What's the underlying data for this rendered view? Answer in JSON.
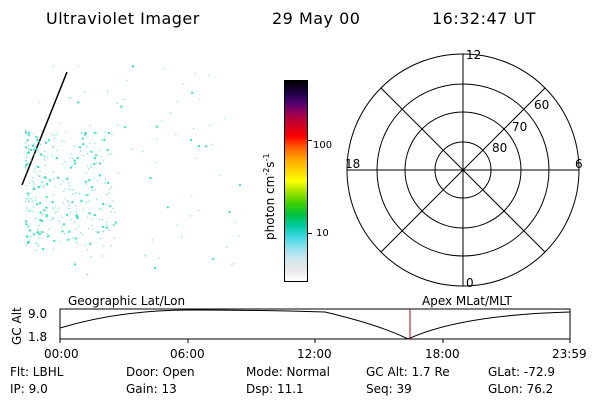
{
  "header": {
    "title": "Ultraviolet Imager",
    "date": "29 May 00",
    "time": "16:32:47 UT"
  },
  "colorbar": {
    "unit_label": "photon cm",
    "unit_exp1": "-2",
    "unit_s": "s",
    "unit_exp2": "-1",
    "ticks": [
      "100",
      "10"
    ],
    "colors": [
      "#ffffff",
      "#e8e8e8",
      "#cfe8f0",
      "#8fe0f0",
      "#3cd8e0",
      "#00c8a0",
      "#00c040",
      "#40d000",
      "#a0e000",
      "#ffff00",
      "#ffd000",
      "#ffa000",
      "#ff6000",
      "#ff0000",
      "#d00020",
      "#a00050",
      "#500070",
      "#1a0040",
      "#000000"
    ]
  },
  "polar_grid": {
    "mlt_labels": [
      "12",
      "18",
      "6",
      "0"
    ],
    "lat_labels": [
      "60",
      "70",
      "80"
    ]
  },
  "orbit": {
    "left_label": "Geographic Lat/Lon",
    "right_label": "Apex MLat/MLT",
    "axis_title": "GC Alt",
    "y_ticks": [
      "9.0",
      "1.8"
    ],
    "x_ticks": [
      "00:00",
      "06:00",
      "12:00",
      "18:00",
      "23:59"
    ],
    "marker_color": "#cc0000"
  },
  "footer": {
    "flt": "Flt: LBHL",
    "ip": "IP:  9.0",
    "door": "Door: Open",
    "gain": "Gain: 13",
    "mode": "Mode:  Normal",
    "dsp": "Dsp:    11.1",
    "gcalt": "GC Alt:  1.7 Re",
    "seq": "Seq:  39",
    "glat": "GLat:  -72.9",
    "glon": "GLon:   76.2"
  },
  "image_panel": {
    "dot_color": "#2fe0c8"
  }
}
